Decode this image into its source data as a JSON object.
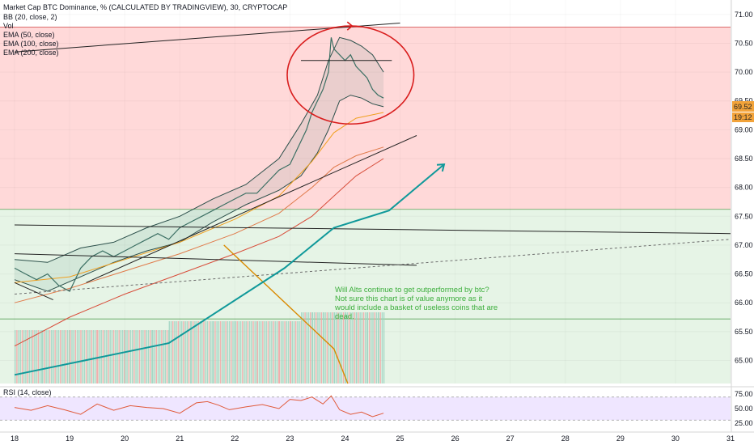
{
  "chart_data": {
    "type": "line",
    "title": "Market Cap BTC Dominance, % (CALCULATED BY TRADINGVIEW), 30, CRYPTOCAP",
    "indicators": [
      "BB (20, close, 2)",
      "Vol",
      "EMA (50, close)",
      "EMA (100, close)",
      "EMA (200, close)"
    ],
    "x_ticks": [
      "18",
      "19",
      "20",
      "21",
      "22",
      "23",
      "24",
      "25",
      "26",
      "27",
      "28",
      "29",
      "30",
      "31"
    ],
    "x_range": [
      18,
      31
    ],
    "y_ticks": [
      "71.00",
      "70.50",
      "70.00",
      "69.50",
      "69.00",
      "68.50",
      "68.00",
      "67.50",
      "67.00",
      "66.50",
      "66.00",
      "65.50",
      "65.00"
    ],
    "ylim": [
      64.6,
      71.25
    ],
    "last_price": "69.52",
    "countdown": "19:12",
    "zones": [
      {
        "name": "red-zone",
        "from": 67.62,
        "to": 70.78,
        "color": "#ffd9d9"
      },
      {
        "name": "green-zone",
        "from": 64.6,
        "to": 67.62,
        "color": "#e6f4e6"
      }
    ],
    "price_series": {
      "name": "close",
      "x": [
        18.0,
        18.2,
        18.4,
        18.6,
        18.8,
        19.0,
        19.2,
        19.4,
        19.6,
        19.8,
        20.0,
        20.2,
        20.4,
        20.6,
        20.8,
        21.0,
        21.2,
        21.4,
        21.6,
        21.8,
        22.0,
        22.2,
        22.4,
        22.6,
        22.8,
        23.0,
        23.1,
        23.2,
        23.3,
        23.4,
        23.5,
        23.6,
        23.7,
        23.75,
        23.8,
        23.9,
        24.0,
        24.1,
        24.2,
        24.3,
        24.4,
        24.5,
        24.6,
        24.7
      ],
      "y": [
        66.6,
        66.5,
        66.4,
        66.5,
        66.3,
        66.2,
        66.6,
        66.8,
        66.9,
        66.8,
        66.9,
        67.0,
        67.1,
        67.2,
        67.1,
        67.3,
        67.4,
        67.5,
        67.6,
        67.7,
        67.8,
        67.9,
        67.9,
        68.1,
        68.3,
        68.4,
        68.6,
        68.8,
        69.0,
        69.3,
        69.5,
        69.7,
        70.0,
        70.6,
        70.4,
        70.3,
        70.2,
        70.3,
        70.1,
        70.0,
        69.9,
        69.7,
        69.6,
        69.55
      ]
    },
    "bb_upper": {
      "x": [
        18.0,
        18.6,
        19.2,
        19.8,
        20.4,
        21.0,
        21.6,
        22.2,
        22.8,
        23.2,
        23.5,
        23.7,
        23.9,
        24.1,
        24.3,
        24.5,
        24.7
      ],
      "y": [
        66.75,
        66.7,
        66.95,
        67.05,
        67.3,
        67.5,
        67.8,
        68.05,
        68.5,
        69.1,
        69.6,
        70.2,
        70.6,
        70.55,
        70.45,
        70.3,
        70.0
      ]
    },
    "bb_lower": {
      "x": [
        18.0,
        18.6,
        19.2,
        19.8,
        20.4,
        21.0,
        21.6,
        22.2,
        22.8,
        23.2,
        23.5,
        23.7,
        23.9,
        24.1,
        24.3,
        24.5,
        24.7
      ],
      "y": [
        66.4,
        66.2,
        66.45,
        66.7,
        66.9,
        67.05,
        67.4,
        67.7,
        67.95,
        68.2,
        68.6,
        69.0,
        69.5,
        69.6,
        69.55,
        69.45,
        69.4
      ]
    },
    "ema50": {
      "x": [
        18.0,
        19.0,
        20.0,
        21.0,
        22.0,
        22.8,
        23.4,
        23.8,
        24.2,
        24.7
      ],
      "y": [
        66.35,
        66.45,
        66.75,
        67.05,
        67.45,
        67.85,
        68.45,
        68.95,
        69.2,
        69.3
      ]
    },
    "ema100": {
      "x": [
        18.0,
        19.0,
        20.0,
        21.0,
        22.0,
        22.8,
        23.4,
        23.8,
        24.2,
        24.7
      ],
      "y": [
        66.0,
        66.25,
        66.55,
        66.85,
        67.2,
        67.55,
        68.0,
        68.35,
        68.55,
        68.7
      ]
    },
    "ema200": {
      "x": [
        18.0,
        19.0,
        20.0,
        21.0,
        22.0,
        22.8,
        23.4,
        23.8,
        24.2,
        24.7
      ],
      "y": [
        65.25,
        65.75,
        66.15,
        66.5,
        66.85,
        67.15,
        67.5,
        67.85,
        68.2,
        68.5
      ]
    },
    "trendlines": [
      {
        "name": "upper-resistance-line",
        "color": "#222222",
        "points": [
          [
            18.0,
            70.35
          ],
          [
            25.0,
            70.85
          ]
        ]
      },
      {
        "name": "horizontal-top-line",
        "color": "#222222",
        "points": [
          [
            23.2,
            70.2
          ],
          [
            24.85,
            70.2
          ]
        ]
      },
      {
        "name": "rising-support-line",
        "color": "#222222",
        "points": [
          [
            19.3,
            66.35
          ],
          [
            25.3,
            68.9
          ]
        ]
      },
      {
        "name": "long-trendline",
        "color": "#222222",
        "points": [
          [
            18.0,
            67.35
          ],
          [
            31.0,
            67.2
          ]
        ]
      },
      {
        "name": "lower-trendline",
        "color": "#222222",
        "points": [
          [
            18.0,
            66.85
          ],
          [
            25.3,
            66.65
          ]
        ]
      },
      {
        "name": "dashed-trendline",
        "color": "#6b6b6b",
        "points": [
          [
            18.0,
            66.15
          ],
          [
            31.0,
            67.1
          ]
        ]
      },
      {
        "name": "small-down-line",
        "color": "#222222",
        "points": [
          [
            18.0,
            66.35
          ],
          [
            18.7,
            66.05
          ]
        ]
      },
      {
        "name": "orange-projection",
        "color": "#d98a00",
        "points": [
          [
            21.8,
            67.0
          ],
          [
            23.8,
            65.2
          ],
          [
            24.05,
            64.6
          ]
        ]
      }
    ],
    "arrow": {
      "color": "#10999a",
      "points": [
        [
          18.0,
          64.75
        ],
        [
          20.8,
          65.3
        ],
        [
          22.9,
          66.6
        ],
        [
          23.8,
          67.3
        ],
        [
          24.8,
          67.6
        ],
        [
          25.8,
          68.4
        ]
      ]
    },
    "circle": {
      "cx": 24.1,
      "cy": 69.95,
      "rx": 1.15,
      "ry": 0.85,
      "color": "#d91d1d"
    },
    "annotation": "Will Alts continue to get outperformed by btc? Not sure this chart is of value anymore as it would include a basket of useless coins that are dead.",
    "volume": {
      "x": [
        18.0,
        18.5,
        19.0,
        19.5,
        20.0,
        20.5,
        20.8,
        21.2,
        21.6,
        22.0,
        22.4,
        22.8,
        23.0,
        23.2,
        23.4,
        23.6,
        23.8,
        24.0,
        24.2,
        24.4,
        24.6,
        24.7
      ],
      "value": [
        6,
        6,
        6,
        6,
        6,
        6,
        7,
        7,
        7,
        7,
        7,
        7,
        7,
        8,
        8,
        8,
        8,
        8,
        8,
        8,
        8,
        7
      ],
      "max": 10
    },
    "rsi": {
      "label": "RSI (14, close)",
      "ticks": [
        "75.00",
        "50.00",
        "25.00"
      ],
      "levels": [
        70,
        30
      ],
      "ylim": [
        15,
        85
      ],
      "x": [
        18.0,
        18.3,
        18.6,
        18.9,
        19.2,
        19.5,
        19.8,
        20.1,
        20.4,
        20.7,
        21.0,
        21.3,
        21.5,
        21.7,
        21.9,
        22.2,
        22.5,
        22.8,
        23.0,
        23.2,
        23.4,
        23.6,
        23.75,
        23.9,
        24.1,
        24.3,
        24.5,
        24.7
      ],
      "y": [
        52,
        47,
        55,
        48,
        40,
        58,
        47,
        55,
        52,
        50,
        42,
        60,
        62,
        56,
        48,
        53,
        57,
        50,
        66,
        64,
        70,
        58,
        72,
        48,
        40,
        44,
        36,
        42
      ]
    }
  }
}
